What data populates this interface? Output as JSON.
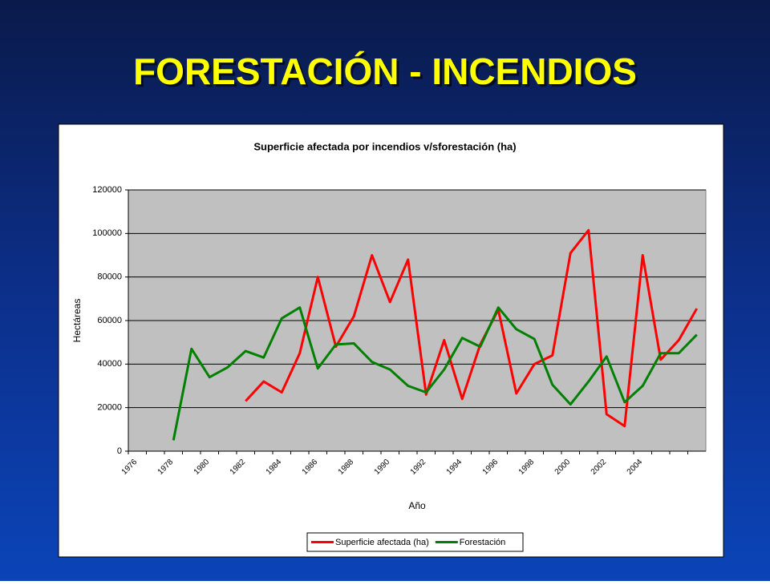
{
  "slide_title": "FORESTACIÓN - INCENDIOS",
  "chart_data": {
    "type": "line",
    "title": "Superficie afectada por incendios v/sforestación (ha)",
    "x_label": "Año",
    "y_label": "Hectáreas",
    "categories": [
      "1976",
      null,
      "1978",
      null,
      "1980",
      null,
      "1982",
      null,
      "1984",
      null,
      "1986",
      null,
      "1988",
      null,
      "1990",
      null,
      "1992",
      null,
      "1994",
      null,
      "1996",
      null,
      "1998",
      null,
      "2000",
      null,
      "2002",
      null,
      "2004",
      null,
      null,
      null
    ],
    "ylim": [
      0,
      120000
    ],
    "yticks": [
      0,
      20000,
      40000,
      60000,
      80000,
      100000,
      120000
    ],
    "grid": true,
    "legend": "bottom",
    "series": [
      {
        "name": "Superficie afectada (ha)",
        "color": "#ff0000",
        "values": [
          null,
          null,
          null,
          null,
          null,
          null,
          23000,
          32000,
          27000,
          45000,
          80000,
          48000,
          62000,
          90000,
          68500,
          88000,
          26000,
          51000,
          24000,
          49000,
          65000,
          26500,
          40000,
          44000,
          91000,
          101500,
          17000,
          11500,
          90000,
          42000,
          51000,
          65500
        ]
      },
      {
        "name": "Forestación",
        "color": "#008000",
        "values": [
          null,
          null,
          5000,
          47000,
          34000,
          38500,
          46000,
          43000,
          61000,
          66000,
          38000,
          49000,
          49500,
          41000,
          37500,
          30000,
          27000,
          37500,
          52000,
          48000,
          66000,
          56000,
          51500,
          30500,
          21500,
          32000,
          43500,
          22500,
          30000,
          45000,
          45000,
          53500
        ]
      }
    ]
  }
}
